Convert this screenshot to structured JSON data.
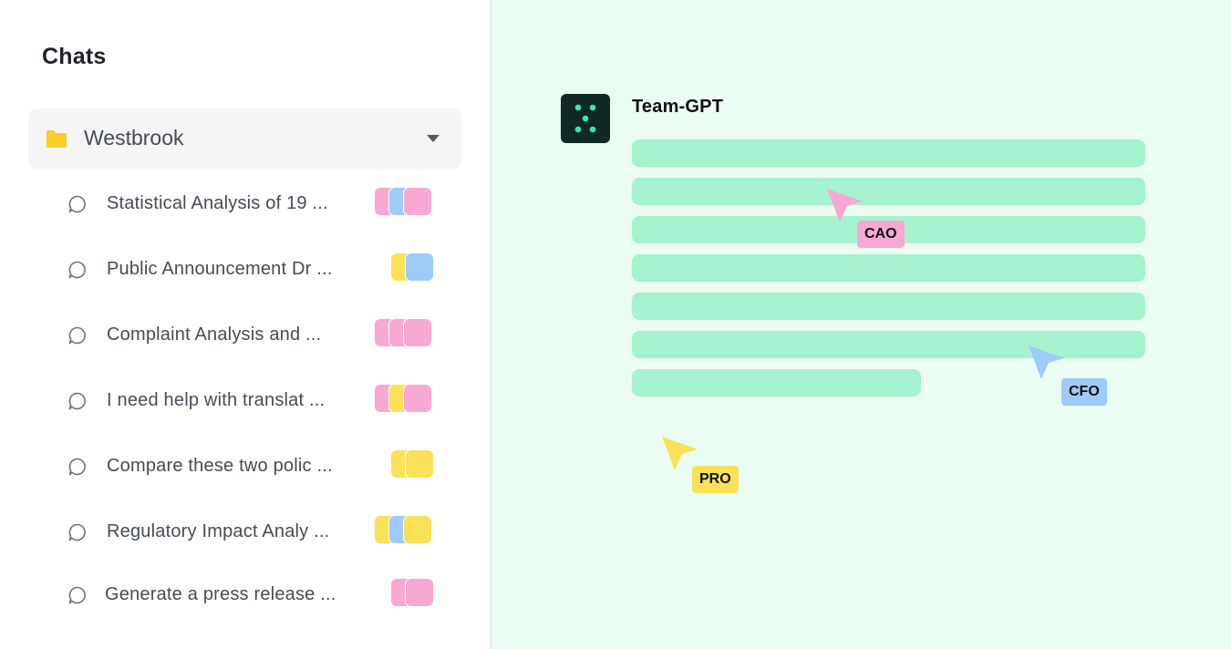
{
  "sidebar": {
    "title": "Chats",
    "folder": {
      "name": "Westbrook",
      "icon": "folder-icon",
      "expand_icon": "caret-down-icon"
    },
    "chats": [
      {
        "title": "Statistical Analysis of 19 ...",
        "participants": [
          "pink",
          "blue",
          "pink"
        ]
      },
      {
        "title": "Public Announcement Dr ...",
        "participants": [
          "yellow",
          "blue"
        ]
      },
      {
        "title": "Complaint Analysis and  ...",
        "participants": [
          "pink",
          "pink",
          "pink"
        ]
      },
      {
        "title": "I need help with translat ...",
        "participants": [
          "pink",
          "yellow",
          "pink"
        ]
      },
      {
        "title": "Compare these two polic ...",
        "participants": [
          "yellow",
          "yellow"
        ]
      },
      {
        "title": "Regulatory Impact Analy ...",
        "participants": [
          "yellow",
          "blue",
          "yellow"
        ]
      },
      {
        "title": "Generate a press release  ...",
        "participants": [
          "pink",
          "pink"
        ]
      }
    ]
  },
  "main": {
    "assistant_name": "Team-GPT",
    "assistant_icon": "team-gpt-logo-icon",
    "message_placeholder_lines": 7,
    "cursors": [
      {
        "label": "CAO",
        "color": "pink"
      },
      {
        "label": "CFO",
        "color": "blue"
      },
      {
        "label": "PRO",
        "color": "yellow"
      }
    ]
  },
  "colors": {
    "pink": "#f7a9d3",
    "blue": "#9ecbf8",
    "yellow": "#fbe157",
    "folder": "#f9cd2c",
    "main_background": "#ebfcf3",
    "placeholder_line": "#a6f2cf",
    "logo_background": "#0f2a26",
    "logo_dots": "#34e8b0"
  }
}
